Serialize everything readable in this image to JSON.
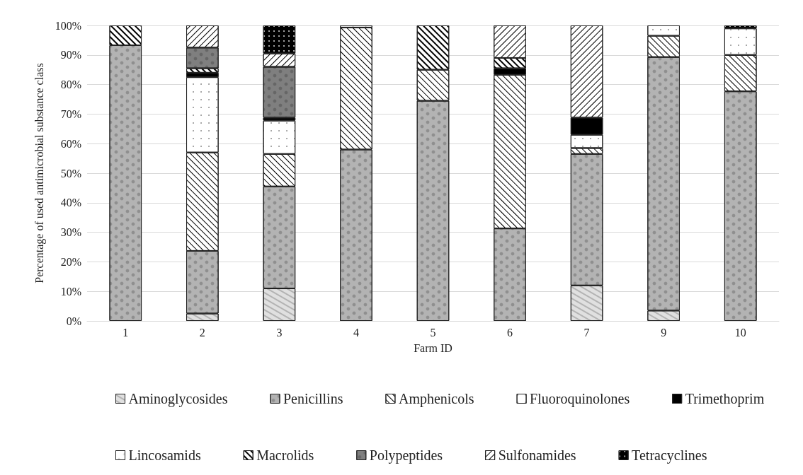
{
  "chart_data": {
    "type": "bar",
    "stacked": true,
    "xlabel": "Farm ID",
    "ylabel": "Percentage of used antimicrobial substance class",
    "categories": [
      "1",
      "2",
      "3",
      "4",
      "5",
      "6",
      "7",
      "9",
      "10"
    ],
    "ylim": [
      0,
      100
    ],
    "yticks": [
      {
        "value": 0,
        "label": "0%"
      },
      {
        "value": 10,
        "label": "10%"
      },
      {
        "value": 20,
        "label": "20%"
      },
      {
        "value": 30,
        "label": "30%"
      },
      {
        "value": 40,
        "label": "40%"
      },
      {
        "value": 50,
        "label": "50%"
      },
      {
        "value": 60,
        "label": "60%"
      },
      {
        "value": 70,
        "label": "70%"
      },
      {
        "value": 80,
        "label": "80%"
      },
      {
        "value": 90,
        "label": "90%"
      },
      {
        "value": 100,
        "label": "100%"
      }
    ],
    "grid": "y",
    "legend": "bottom",
    "series": [
      {
        "name": "Aminoglycosides",
        "color": "#e0e0e0",
        "values": [
          null,
          2.5,
          11,
          null,
          null,
          null,
          12,
          3.5,
          null
        ]
      },
      {
        "name": "Penicillins",
        "color": "#b3b3b3",
        "values": [
          93.3,
          21.2,
          34.5,
          58,
          74.5,
          31.3,
          44.5,
          85.8,
          77.7
        ]
      },
      {
        "name": "Amphenicols",
        "color": "#ffffff",
        "values": [
          null,
          33.3,
          11,
          41.3,
          10.5,
          52,
          2,
          7.2,
          12.3
        ]
      },
      {
        "name": "Fluoroquinolones",
        "color": "#ffffff",
        "values": [
          null,
          25.5,
          11.3,
          null,
          null,
          null,
          4.5,
          3.5,
          9
        ]
      },
      {
        "name": "Trimethoprim",
        "color": "#000000",
        "values": [
          null,
          1.5,
          1,
          null,
          null,
          2.2,
          5.8,
          null,
          null
        ]
      },
      {
        "name": "Lincosamids",
        "color": "#ffffff",
        "values": [
          null,
          null,
          null,
          0.7,
          null,
          null,
          null,
          null,
          null
        ]
      },
      {
        "name": "Macrolids",
        "color": "#ffffff",
        "values": [
          6.7,
          1.5,
          null,
          null,
          15,
          3.5,
          null,
          null,
          null
        ]
      },
      {
        "name": "Polypeptides",
        "color": "#7f7f7f",
        "values": [
          null,
          7,
          17.2,
          null,
          null,
          null,
          null,
          null,
          null
        ]
      },
      {
        "name": "Sulfonamides",
        "color": "#ffffff",
        "values": [
          null,
          7.5,
          4.5,
          null,
          null,
          11,
          31.2,
          null,
          null
        ]
      },
      {
        "name": "Tetracyclines",
        "color": "#000000",
        "values": [
          null,
          null,
          9.5,
          null,
          null,
          null,
          null,
          null,
          1
        ]
      }
    ]
  }
}
